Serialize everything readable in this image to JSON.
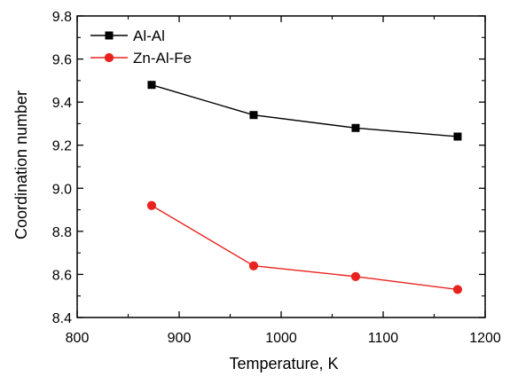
{
  "chart_data": {
    "type": "line",
    "title": "",
    "xlabel": "Temperature, K",
    "ylabel": "Coordination number",
    "x": [
      873,
      973,
      1073,
      1173
    ],
    "xlim": [
      800,
      1200
    ],
    "ylim": [
      8.4,
      9.8
    ],
    "xticks": [
      "800",
      "900",
      "1000",
      "1100",
      "1200"
    ],
    "yticks": [
      "8.4",
      "8.6",
      "8.8",
      "9.0",
      "9.2",
      "9.4",
      "9.6",
      "9.8"
    ],
    "grid": false,
    "legend_position": "top-left",
    "series": [
      {
        "name": "Al-Al",
        "values": [
          9.48,
          9.34,
          9.28,
          9.24
        ],
        "color": "#000000",
        "marker": "square"
      },
      {
        "name": "Zn-Al-Fe",
        "values": [
          8.92,
          8.64,
          8.59,
          8.53
        ],
        "color": "#e8231f",
        "marker": "circle"
      }
    ]
  }
}
